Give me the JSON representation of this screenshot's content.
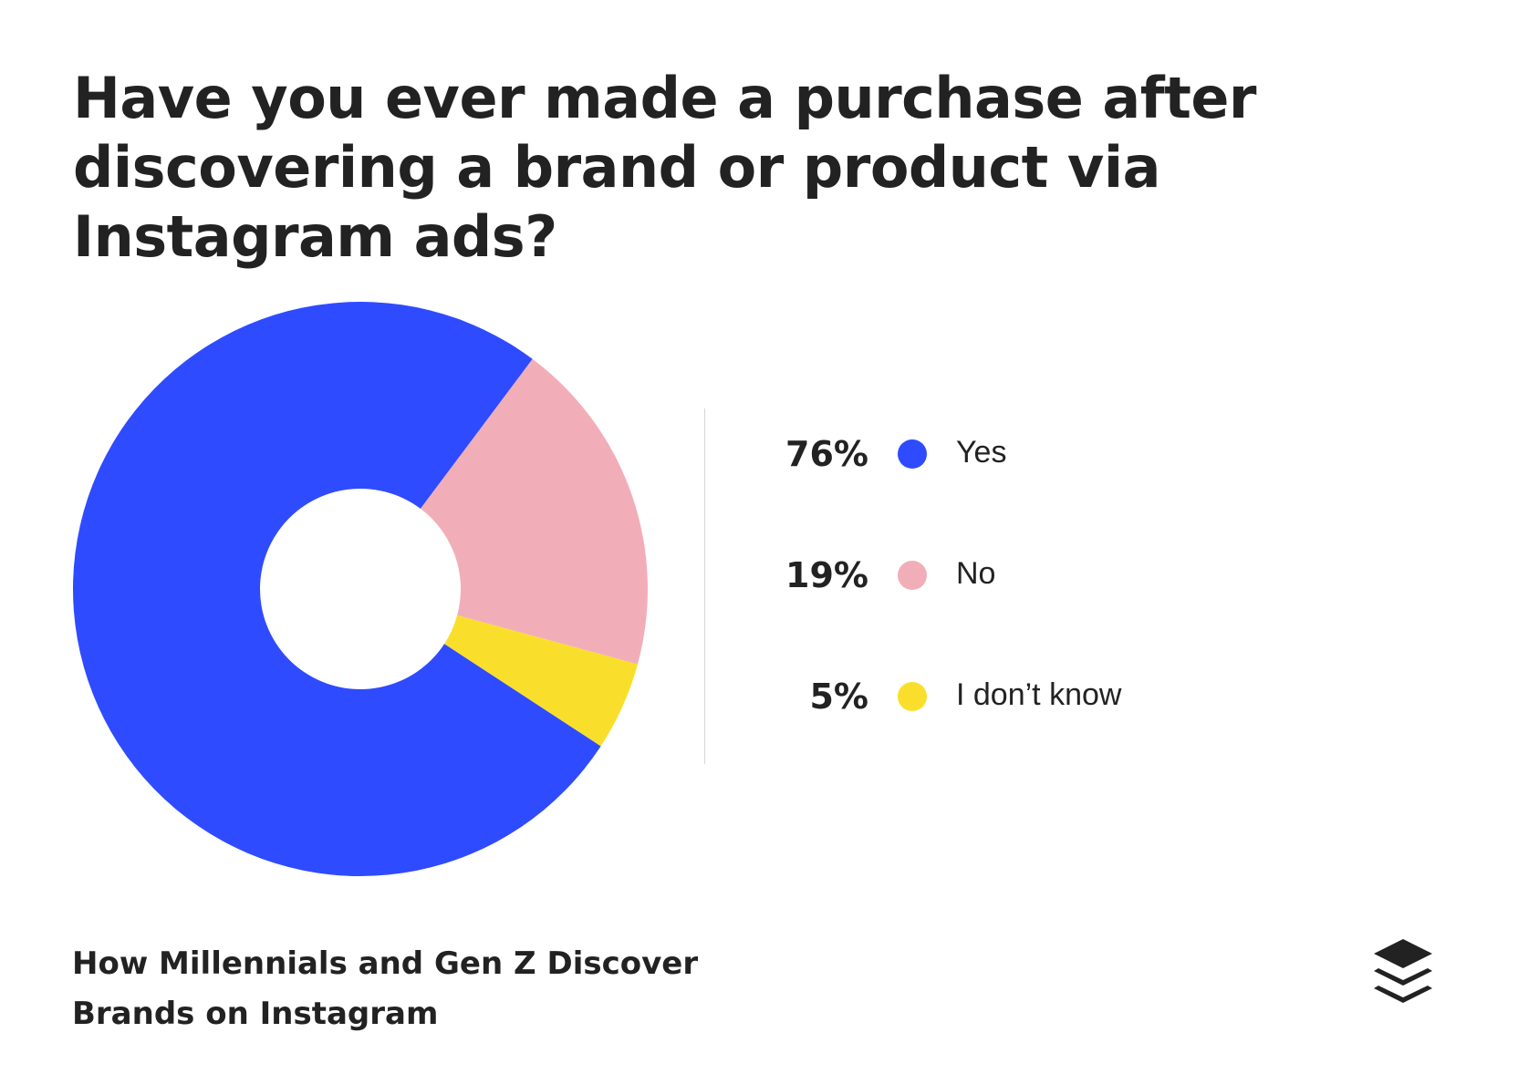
{
  "title": "Have you ever made a purchase after discovering a brand or product via Instagram ads?",
  "footer": {
    "source_title_line1": "How Millennials and Gen Z Discover",
    "source_title_line2": "Brands on Instagram"
  },
  "brand_logo_icon": "stacked-layers-icon",
  "chart_data": {
    "type": "pie",
    "subtype": "donut",
    "title": "Have you ever made a purchase after discovering a brand or product via Instagram ads?",
    "categories": [
      "Yes",
      "No",
      "I don’t know"
    ],
    "values": [
      76,
      19,
      5
    ],
    "units": "%",
    "legend_position": "right",
    "slices": [
      {
        "label": "Yes",
        "value": 76,
        "display": "76%",
        "color": "#2f4bff"
      },
      {
        "label": "No",
        "value": 19,
        "display": "19%",
        "color": "#f2aeb8"
      },
      {
        "label": "I don’t know",
        "value": 5,
        "display": "5%",
        "color": "#f9df2b"
      }
    ]
  },
  "colors": {
    "text": "#222222",
    "background": "#ffffff",
    "divider": "#d6d6d6",
    "yes": "#2f4bff",
    "no": "#f2aeb8",
    "dont_know": "#f9df2b"
  }
}
